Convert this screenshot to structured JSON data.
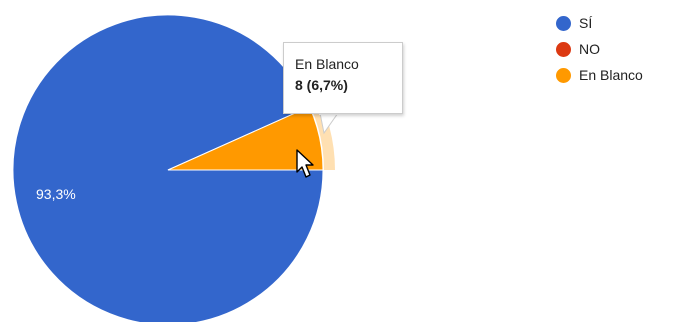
{
  "chart_data": {
    "type": "pie",
    "title": "",
    "categories": [
      "SÍ",
      "NO",
      "En Blanco"
    ],
    "values": [
      93.3,
      0,
      6.7
    ],
    "colors": [
      "#3366cc",
      "#dc3912",
      "#ff9900"
    ],
    "slice_labels": [
      "93,3%",
      "",
      ""
    ],
    "legend_position": "right",
    "highlighted": "En Blanco"
  },
  "tooltip": {
    "title": "En Blanco",
    "value": "8 (6,7%)"
  },
  "cursor": {
    "icon": "arrow-cursor-icon"
  }
}
